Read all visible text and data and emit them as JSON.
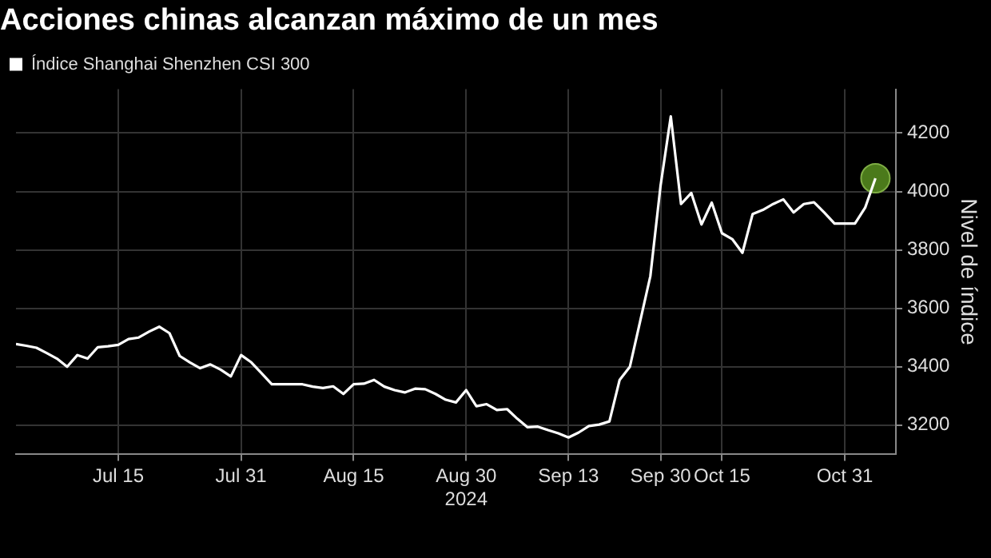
{
  "chart_data": {
    "type": "line",
    "title": "Acciones chinas alcanzan máximo de un mes",
    "ylabel": "Nivel de índice",
    "categories": [
      null,
      null,
      null,
      null,
      null,
      null,
      null,
      null,
      null,
      null,
      "Jul 15",
      null,
      null,
      null,
      null,
      null,
      null,
      null,
      null,
      null,
      null,
      null,
      "Jul 31",
      null,
      null,
      null,
      null,
      null,
      null,
      null,
      null,
      null,
      null,
      "Aug 15",
      null,
      null,
      null,
      null,
      null,
      null,
      null,
      null,
      null,
      null,
      "Aug 30\n2024",
      null,
      null,
      null,
      null,
      null,
      null,
      null,
      null,
      null,
      "Sep 13",
      null,
      null,
      null,
      null,
      null,
      null,
      null,
      null,
      "Sep 30",
      null,
      null,
      null,
      null,
      null,
      "Oct 15",
      null,
      null,
      null,
      null,
      null,
      null,
      null,
      null,
      null,
      null,
      null,
      "Oct 31",
      null,
      null,
      null
    ],
    "series": [
      {
        "name": "Índice Shanghai Shenzhen CSI 300",
        "color": "#ffffff",
        "values": [
          3478,
          3472,
          3465,
          3447,
          3428,
          3400,
          3440,
          3428,
          3467,
          3470,
          3475,
          3495,
          3500,
          3520,
          3537,
          3515,
          3437,
          3415,
          3395,
          3408,
          3390,
          3367,
          3440,
          3415,
          3378,
          3340,
          3340,
          3340,
          3340,
          3332,
          3327,
          3333,
          3307,
          3340,
          3342,
          3355,
          3332,
          3320,
          3312,
          3325,
          3323,
          3307,
          3287,
          3278,
          3320,
          3265,
          3272,
          3252,
          3255,
          3222,
          3193,
          3195,
          3183,
          3172,
          3158,
          3175,
          3197,
          3202,
          3213,
          3355,
          3400,
          3555,
          3710,
          4020,
          4257,
          3957,
          3995,
          3887,
          3962,
          3857,
          3837,
          3790,
          3923,
          3937,
          3957,
          3973,
          3928,
          3957,
          3963,
          3928,
          3890,
          3890,
          3890,
          3945,
          4045
        ]
      },
      {
        "type": "scatter",
        "marker": "circle",
        "color": "#4b7a1b",
        "values": [
          null,
          null,
          null,
          null,
          null,
          null,
          null,
          null,
          null,
          null,
          null,
          null,
          null,
          null,
          null,
          null,
          null,
          null,
          null,
          null,
          null,
          null,
          null,
          null,
          null,
          null,
          null,
          null,
          null,
          null,
          null,
          null,
          null,
          null,
          null,
          null,
          null,
          null,
          null,
          null,
          null,
          null,
          null,
          null,
          null,
          null,
          null,
          null,
          null,
          null,
          null,
          null,
          null,
          null,
          null,
          null,
          null,
          null,
          null,
          null,
          null,
          null,
          null,
          null,
          null,
          null,
          null,
          null,
          null,
          null,
          null,
          null,
          null,
          null,
          null,
          null,
          null,
          null,
          null,
          null,
          null,
          null,
          null,
          null,
          4045
        ]
      }
    ],
    "ylim": [
      3100,
      4350
    ],
    "yticks": [
      3200,
      3400,
      3600,
      3800,
      4000,
      4200
    ],
    "grid": true,
    "legend": "top left",
    "marker": "none",
    "line_style": "solid"
  }
}
